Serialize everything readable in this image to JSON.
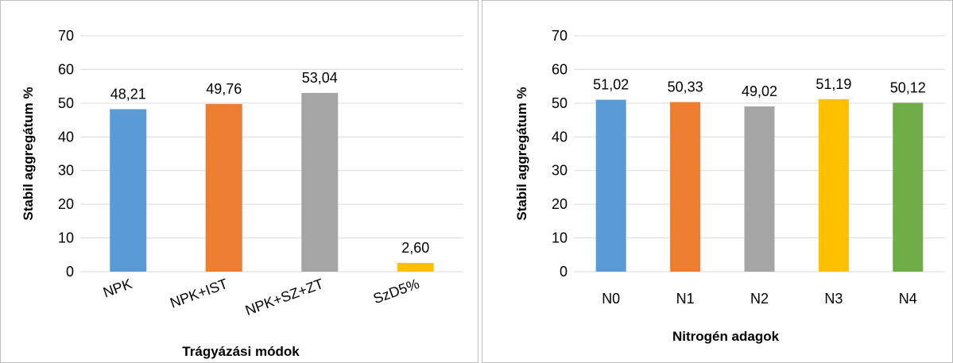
{
  "chart_data": [
    {
      "type": "bar",
      "categories": [
        "NPK",
        "NPK+IST",
        "NPK+SZ+ZT",
        "SzD5%"
      ],
      "values": [
        48.21,
        49.76,
        53.04,
        2.6
      ],
      "data_labels": [
        "48,21",
        "49,76",
        "53,04",
        "2,60"
      ],
      "colors": [
        "#5b9bd5",
        "#ed7d31",
        "#a5a5a5",
        "#ffc000"
      ],
      "xlabel": "Trágyázási módok",
      "ylabel": "Stabil aggregátum %",
      "ylim": [
        0,
        70
      ],
      "yticks": [
        "0",
        "10",
        "20",
        "30",
        "40",
        "50",
        "60",
        "70"
      ],
      "grid": true,
      "x_tick_rotation": "rotated"
    },
    {
      "type": "bar",
      "categories": [
        "N0",
        "N1",
        "N2",
        "N3",
        "N4"
      ],
      "values": [
        51.02,
        50.33,
        49.02,
        51.19,
        50.12
      ],
      "data_labels": [
        "51,02",
        "50,33",
        "49,02",
        "51,19",
        "50,12"
      ],
      "colors": [
        "#5b9bd5",
        "#ed7d31",
        "#a5a5a5",
        "#ffc000",
        "#70ad47"
      ],
      "xlabel": "Nitrogén adagok",
      "ylabel": "Stabil aggregátum %",
      "ylim": [
        0,
        70
      ],
      "yticks": [
        "0",
        "10",
        "20",
        "30",
        "40",
        "50",
        "60",
        "70"
      ],
      "grid": true,
      "x_tick_rotation": "none"
    }
  ]
}
